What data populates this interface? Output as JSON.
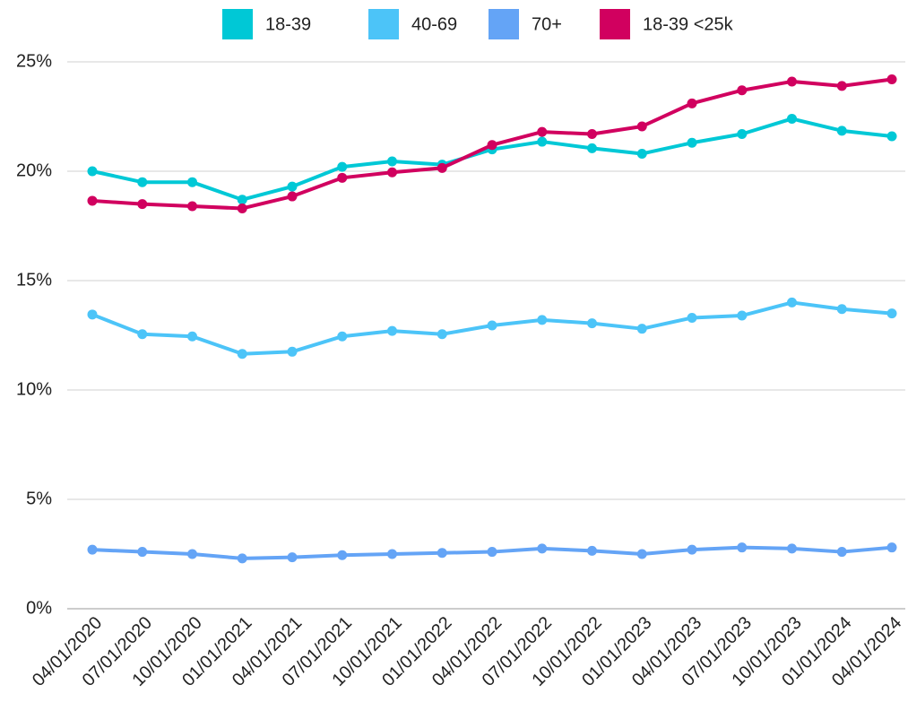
{
  "chart_data": {
    "type": "line",
    "categories": [
      "04/01/2020",
      "07/01/2020",
      "10/01/2020",
      "01/01/2021",
      "04/01/2021",
      "07/01/2021",
      "10/01/2021",
      "01/01/2022",
      "04/01/2022",
      "07/01/2022",
      "10/01/2022",
      "01/01/2023",
      "04/01/2023",
      "07/01/2023",
      "10/01/2023",
      "01/01/2024",
      "04/01/2024"
    ],
    "series": [
      {
        "name": "18-39",
        "color": "#00c8d6",
        "values": [
          20.0,
          19.5,
          19.5,
          18.7,
          19.3,
          20.2,
          20.45,
          20.3,
          21.0,
          21.35,
          21.05,
          20.8,
          21.3,
          21.7,
          22.4,
          21.85,
          21.6
        ]
      },
      {
        "name": "40-69",
        "color": "#4cc4f8",
        "values": [
          13.45,
          12.55,
          12.45,
          11.65,
          11.75,
          12.45,
          12.7,
          12.55,
          12.95,
          13.2,
          13.05,
          12.8,
          13.3,
          13.4,
          14.0,
          13.7,
          13.5
        ]
      },
      {
        "name": "70+",
        "color": "#64a4f6",
        "values": [
          2.7,
          2.6,
          2.5,
          2.3,
          2.35,
          2.45,
          2.5,
          2.55,
          2.6,
          2.75,
          2.65,
          2.5,
          2.7,
          2.8,
          2.75,
          2.6,
          2.8
        ]
      },
      {
        "name": "18-39 <25k",
        "color": "#d1005f",
        "values": [
          18.65,
          18.5,
          18.4,
          18.3,
          18.85,
          19.7,
          19.95,
          20.15,
          21.2,
          21.8,
          21.7,
          22.05,
          23.1,
          23.7,
          24.1,
          23.9,
          24.2
        ]
      }
    ],
    "ylim": [
      0,
      25
    ],
    "yticks": [
      {
        "value": 0,
        "label": "0%"
      },
      {
        "value": 5,
        "label": "5%"
      },
      {
        "value": 10,
        "label": "10%"
      },
      {
        "value": 15,
        "label": "15%"
      },
      {
        "value": 20,
        "label": "20%"
      },
      {
        "value": 25,
        "label": "25%"
      }
    ],
    "grid": true,
    "legend": "top"
  }
}
